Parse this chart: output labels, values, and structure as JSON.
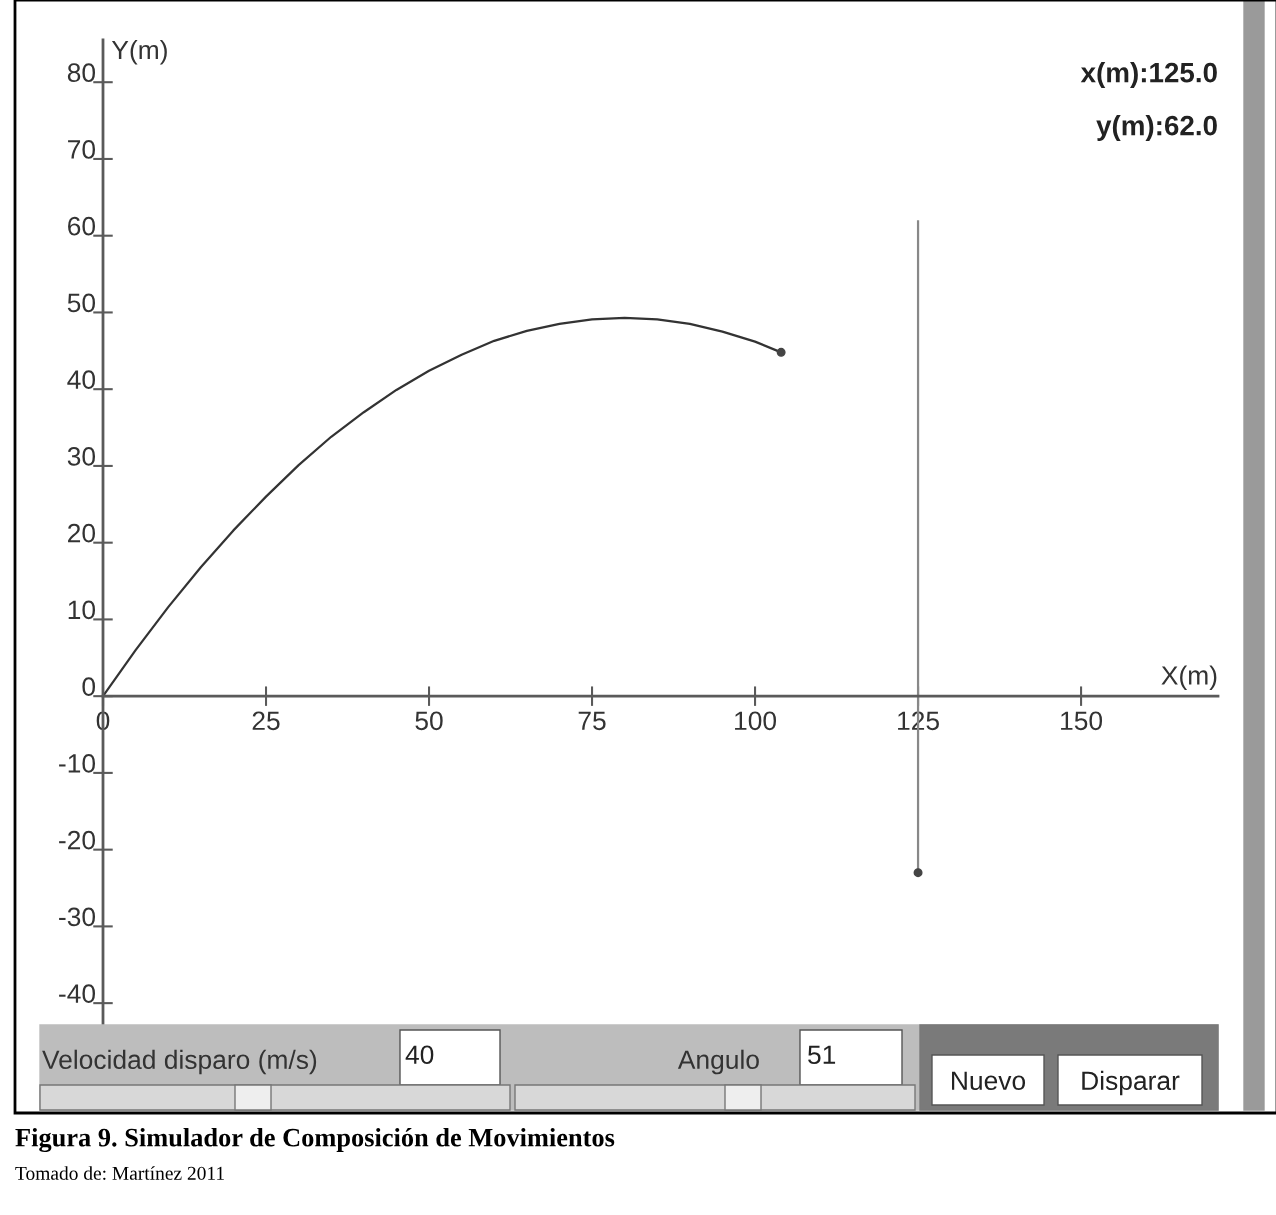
{
  "chart_data": {
    "type": "line",
    "xlabel": "X(m)",
    "ylabel": "Y(m)",
    "x": [
      0,
      5,
      10,
      15,
      20,
      25,
      30,
      35,
      40,
      45,
      50,
      55,
      60,
      65,
      70,
      75,
      80,
      85,
      90,
      95,
      100,
      104
    ],
    "series": [
      {
        "color": "#333333",
        "values": [
          0,
          6.0,
          11.6,
          16.8,
          21.6,
          26.0,
          30.1,
          33.8,
          37.0,
          39.9,
          42.4,
          44.5,
          46.3,
          47.6,
          48.5,
          49.1,
          49.3,
          49.1,
          48.5,
          47.5,
          46.2,
          44.8
        ]
      },
      {
        "type": "scatter",
        "color": "#444444",
        "x": [
          104,
          125
        ],
        "values": [
          44.8,
          -23
        ],
        "errors": [
          null,
          [
            -23,
            62
          ]
        ]
      }
    ],
    "xlim": [
      0,
      171
    ],
    "ylim": [
      -43.5,
      85.5
    ],
    "xticks": [
      0,
      25,
      50,
      75,
      100,
      125,
      150
    ],
    "yticks": [
      -40,
      -30,
      -20,
      -10,
      0,
      10,
      20,
      30,
      40,
      50,
      60,
      70,
      80
    ],
    "grid": false,
    "annotations": [
      "x(m):125.0",
      "y(m):62.0",
      "Velocidad disparo (m/s)",
      "40",
      "Angulo",
      "51",
      "Nuevo",
      "Disparar",
      "Figura 9. Simulador de Composición de Movimientos",
      "Tomado de: Martínez 2011"
    ]
  }
}
